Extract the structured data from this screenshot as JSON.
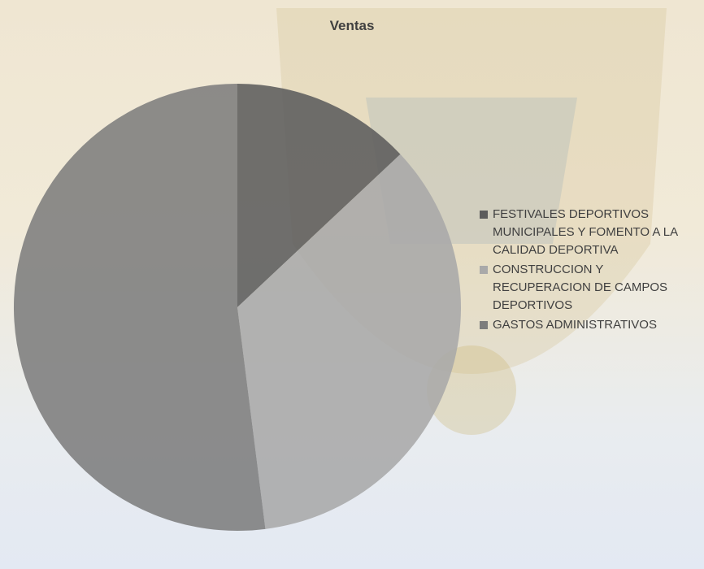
{
  "chart_data": {
    "type": "pie",
    "title": "Ventas",
    "categories": [
      "FESTIVALES DEPORTIVOS MUNICIPALES Y FOMENTO A LA CALIDAD DEPORTIVA",
      "CONSTRUCCION Y RECUPERACION DE CAMPOS DEPORTIVOS",
      "GASTOS ADMINISTRATIVOS"
    ],
    "values": [
      13,
      35,
      52
    ],
    "colors": [
      "#5c5c5c",
      "#a9a9a9",
      "#7d7d7d"
    ],
    "legend": "right"
  }
}
